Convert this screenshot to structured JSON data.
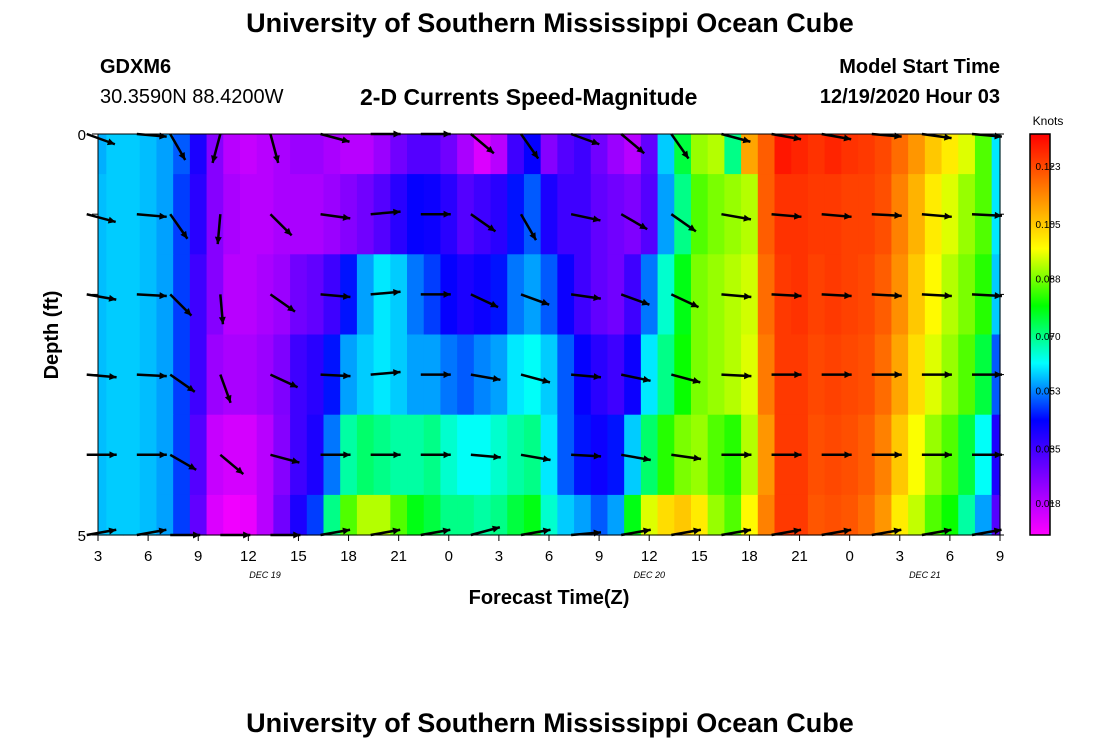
{
  "header": {
    "title": "University of Southern Mississippi Ocean Cube",
    "station_id": "GDXM6",
    "station_coords": "30.3590N 88.4200W",
    "chart_title": "2-D Currents Speed-Magnitude",
    "model_label": "Model Start Time",
    "model_time": "12/19/2020 Hour 03"
  },
  "footer": {
    "title": "University of Southern Mississippi Ocean Cube"
  },
  "chart_data": {
    "type": "heatmap",
    "title": "2-D Currents Speed-Magnitude",
    "xlabel": "Forecast Time(Z)",
    "ylabel": "Depth (ft)",
    "colorbar_label": "Knots",
    "colorbar_ticks": [
      "0.018",
      "0.035",
      "0.053",
      "0.070",
      "0.088",
      "0.105",
      "0.123"
    ],
    "colorbar_range": [
      0.008,
      0.133
    ],
    "color_scale": [
      "#ff00ff",
      "#8000ff",
      "#0000ff",
      "#00ffff",
      "#00ff00",
      "#ffff00",
      "#ff8000",
      "#ff0000"
    ],
    "x_hours_range": [
      3,
      57
    ],
    "x_tick_hours": [
      3,
      6,
      9,
      12,
      15,
      18,
      21,
      24,
      27,
      30,
      33,
      36,
      39,
      42,
      45,
      48,
      51,
      54,
      57
    ],
    "x_tick_labels": [
      "3",
      "6",
      "9",
      "12",
      "15",
      "18",
      "21",
      "0",
      "3",
      "6",
      "9",
      "12",
      "15",
      "18",
      "21",
      "0",
      "3",
      "6",
      "9"
    ],
    "date_labels": [
      {
        "text": "DEC 19",
        "hour": 13
      },
      {
        "text": "DEC 20",
        "hour": 36
      },
      {
        "text": "DEC 21",
        "hour": 52.5
      }
    ],
    "y_range": [
      0,
      5
    ],
    "y_tick_labels": [
      "0",
      "5"
    ],
    "time_steps_hours": [
      3,
      4,
      5,
      6,
      7,
      8,
      9,
      10,
      11,
      12,
      13,
      14,
      15,
      16,
      17,
      18,
      19,
      20,
      21,
      22,
      23,
      24,
      25,
      26,
      27,
      28,
      29,
      30,
      31,
      32,
      33,
      34,
      35,
      36,
      37,
      38,
      39,
      40,
      41,
      42,
      43,
      44,
      45,
      46,
      47,
      48,
      49,
      50,
      51,
      52,
      53,
      54,
      55,
      56,
      57
    ],
    "depth_levels": [
      0,
      1,
      2,
      3,
      4,
      5
    ],
    "speed_rows": [
      [
        0.056,
        0.058,
        0.058,
        0.057,
        0.055,
        0.05,
        0.04,
        0.025,
        0.018,
        0.016,
        0.018,
        0.02,
        0.022,
        0.022,
        0.02,
        0.018,
        0.018,
        0.022,
        0.028,
        0.032,
        0.032,
        0.028,
        0.02,
        0.013,
        0.018,
        0.035,
        0.043,
        0.025,
        0.032,
        0.035,
        0.028,
        0.022,
        0.018,
        0.03,
        0.058,
        0.075,
        0.09,
        0.092,
        0.07,
        0.11,
        0.12,
        0.13,
        0.128,
        0.126,
        0.128,
        0.126,
        0.125,
        0.123,
        0.118,
        0.112,
        0.105,
        0.1,
        0.095,
        0.085,
        0.06
      ],
      [
        0.057,
        0.058,
        0.058,
        0.057,
        0.055,
        0.048,
        0.038,
        0.025,
        0.02,
        0.018,
        0.018,
        0.02,
        0.02,
        0.02,
        0.022,
        0.025,
        0.028,
        0.032,
        0.038,
        0.043,
        0.042,
        0.038,
        0.032,
        0.035,
        0.038,
        0.045,
        0.05,
        0.04,
        0.035,
        0.035,
        0.03,
        0.028,
        0.026,
        0.032,
        0.055,
        0.07,
        0.085,
        0.088,
        0.09,
        0.092,
        0.12,
        0.126,
        0.126,
        0.125,
        0.125,
        0.124,
        0.124,
        0.122,
        0.115,
        0.108,
        0.1,
        0.095,
        0.09,
        0.085,
        0.06
      ],
      [
        0.057,
        0.058,
        0.058,
        0.057,
        0.055,
        0.048,
        0.035,
        0.025,
        0.018,
        0.018,
        0.02,
        0.022,
        0.028,
        0.03,
        0.035,
        0.045,
        0.055,
        0.06,
        0.058,
        0.052,
        0.048,
        0.043,
        0.04,
        0.042,
        0.045,
        0.052,
        0.055,
        0.05,
        0.042,
        0.035,
        0.03,
        0.028,
        0.035,
        0.052,
        0.065,
        0.078,
        0.088,
        0.09,
        0.092,
        0.094,
        0.118,
        0.125,
        0.126,
        0.124,
        0.125,
        0.124,
        0.123,
        0.12,
        0.113,
        0.105,
        0.098,
        0.092,
        0.088,
        0.082,
        0.058
      ],
      [
        0.057,
        0.058,
        0.058,
        0.057,
        0.055,
        0.048,
        0.035,
        0.022,
        0.02,
        0.02,
        0.022,
        0.026,
        0.035,
        0.038,
        0.045,
        0.055,
        0.058,
        0.06,
        0.058,
        0.055,
        0.055,
        0.052,
        0.05,
        0.053,
        0.055,
        0.06,
        0.062,
        0.058,
        0.05,
        0.043,
        0.038,
        0.035,
        0.042,
        0.06,
        0.07,
        0.08,
        0.088,
        0.09,
        0.092,
        0.095,
        0.116,
        0.125,
        0.125,
        0.123,
        0.124,
        0.123,
        0.122,
        0.118,
        0.11,
        0.102,
        0.095,
        0.09,
        0.085,
        0.075,
        0.05
      ],
      [
        0.057,
        0.058,
        0.058,
        0.057,
        0.055,
        0.048,
        0.032,
        0.016,
        0.014,
        0.014,
        0.018,
        0.025,
        0.035,
        0.04,
        0.052,
        0.068,
        0.072,
        0.07,
        0.068,
        0.068,
        0.07,
        0.065,
        0.062,
        0.062,
        0.065,
        0.068,
        0.07,
        0.06,
        0.05,
        0.045,
        0.042,
        0.045,
        0.058,
        0.072,
        0.082,
        0.088,
        0.09,
        0.085,
        0.082,
        0.092,
        0.112,
        0.125,
        0.125,
        0.122,
        0.123,
        0.122,
        0.12,
        0.115,
        0.105,
        0.097,
        0.09,
        0.085,
        0.075,
        0.062,
        0.04
      ],
      [
        0.057,
        0.058,
        0.058,
        0.057,
        0.055,
        0.048,
        0.03,
        0.013,
        0.01,
        0.011,
        0.018,
        0.028,
        0.04,
        0.048,
        0.07,
        0.085,
        0.092,
        0.092,
        0.085,
        0.078,
        0.075,
        0.07,
        0.07,
        0.068,
        0.07,
        0.075,
        0.078,
        0.065,
        0.058,
        0.055,
        0.05,
        0.055,
        0.078,
        0.095,
        0.102,
        0.105,
        0.1,
        0.09,
        0.085,
        0.098,
        0.115,
        0.125,
        0.125,
        0.121,
        0.122,
        0.121,
        0.118,
        0.112,
        0.1,
        0.093,
        0.085,
        0.08,
        0.068,
        0.055,
        0.032
      ]
    ],
    "arrow_columns_hours": [
      4,
      7,
      9,
      12,
      15,
      18,
      21,
      24,
      27,
      30,
      33,
      36,
      39,
      42,
      45,
      48,
      51,
      54,
      57
    ],
    "arrow_dir_deg_by_row": [
      [
        20,
        5,
        60,
        105,
        75,
        15,
        0,
        0,
        40,
        55,
        20,
        40,
        55,
        15,
        10,
        10,
        5,
        8,
        5
      ],
      [
        15,
        5,
        55,
        95,
        45,
        8,
        -5,
        0,
        35,
        60,
        12,
        30,
        35,
        10,
        5,
        5,
        3,
        5,
        3
      ],
      [
        10,
        3,
        45,
        85,
        35,
        5,
        -5,
        0,
        25,
        20,
        8,
        20,
        25,
        5,
        3,
        3,
        3,
        3,
        3
      ],
      [
        5,
        3,
        35,
        70,
        25,
        3,
        -5,
        0,
        10,
        15,
        5,
        12,
        15,
        3,
        0,
        0,
        0,
        0,
        0
      ],
      [
        0,
        0,
        30,
        40,
        15,
        0,
        0,
        0,
        5,
        10,
        3,
        10,
        8,
        0,
        0,
        0,
        0,
        0,
        0
      ],
      [
        -10,
        -10,
        0,
        0,
        0,
        -10,
        -10,
        -10,
        -15,
        -10,
        -5,
        -10,
        -10,
        -10,
        -10,
        -10,
        -10,
        -10,
        -10
      ]
    ]
  }
}
